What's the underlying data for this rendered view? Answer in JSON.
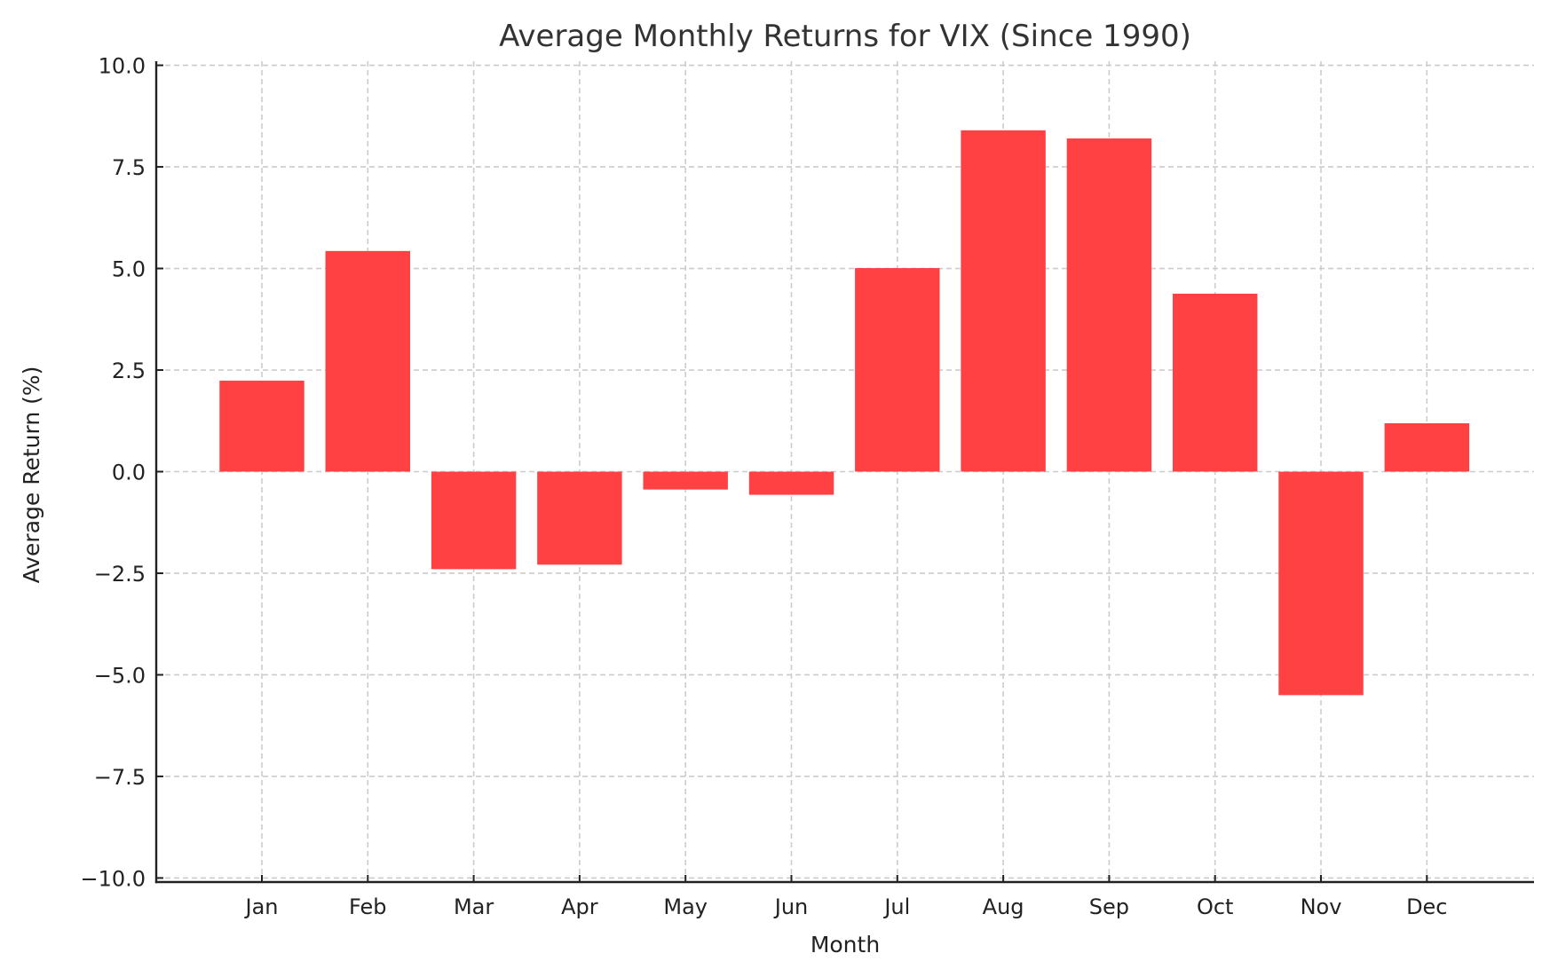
{
  "chart_data": {
    "type": "bar",
    "title": "Average Monthly Returns for VIX (Since 1990)",
    "xlabel": "Month",
    "ylabel": "Average Return (%)",
    "categories": [
      "Jan",
      "Feb",
      "Mar",
      "Apr",
      "May",
      "Jun",
      "Jul",
      "Aug",
      "Sep",
      "Oct",
      "Nov",
      "Dec"
    ],
    "values": [
      2.24,
      5.43,
      -2.4,
      -2.29,
      -0.44,
      -0.57,
      5.01,
      8.4,
      8.2,
      4.38,
      -5.5,
      1.19
    ],
    "ylim": [
      -10.1,
      10.1
    ],
    "yticks": [
      10.0,
      7.5,
      5.0,
      2.5,
      0.0,
      -2.5,
      -5.0,
      -7.5,
      -10.0
    ],
    "ytick_labels": [
      "10.0",
      "7.5",
      "5.0",
      "2.5",
      "0.0",
      "−2.5",
      "−5.0",
      "−7.5",
      "−10.0"
    ],
    "grid": true,
    "grid_style": "dashed",
    "legend": null,
    "bar_color": "#ff4144"
  }
}
